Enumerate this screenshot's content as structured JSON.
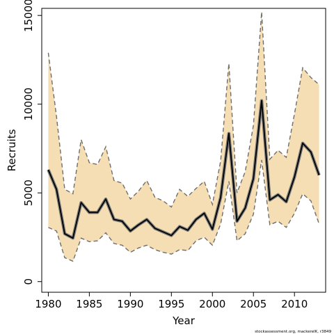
{
  "chart_data": {
    "type": "line",
    "title": "",
    "xlabel": "Year",
    "ylabel": "Recruits",
    "xlim": [
      1979.2,
      2013.8
    ],
    "ylim": [
      -600,
      15400
    ],
    "x_ticks": [
      1980,
      1985,
      1990,
      1995,
      2000,
      2005,
      2010
    ],
    "y_ticks": [
      0,
      5000,
      10000,
      15000
    ],
    "grid": false,
    "legend": "none",
    "x": [
      1980,
      1981,
      1982,
      1983,
      1984,
      1985,
      1986,
      1987,
      1988,
      1989,
      1990,
      1991,
      1992,
      1993,
      1994,
      1995,
      1996,
      1997,
      1998,
      1999,
      2000,
      2001,
      2002,
      2003,
      2004,
      2005,
      2006,
      2007,
      2008,
      2009,
      2010,
      2011,
      2012,
      2013
    ],
    "estimate": [
      6300,
      5200,
      2700,
      2450,
      4450,
      3900,
      3900,
      4650,
      3500,
      3400,
      2850,
      3200,
      3500,
      3000,
      2800,
      2600,
      3100,
      2900,
      3500,
      3850,
      2950,
      4750,
      8350,
      3400,
      4150,
      5800,
      10200,
      4600,
      4900,
      4500,
      5900,
      7800,
      7300,
      6000
    ],
    "lower": [
      3050,
      2850,
      1350,
      1150,
      2450,
      2250,
      2300,
      2750,
      2150,
      2050,
      1650,
      1900,
      2050,
      1800,
      1650,
      1550,
      1800,
      1750,
      2300,
      2500,
      2050,
      3250,
      5650,
      2300,
      2700,
      3800,
      6850,
      3200,
      3400,
      3050,
      3850,
      4950,
      4550,
      3250
    ],
    "upper": [
      12900,
      9300,
      5200,
      4950,
      8000,
      6700,
      6600,
      7600,
      5700,
      5550,
      4650,
      5100,
      5700,
      4750,
      4550,
      4200,
      5200,
      4800,
      5250,
      5650,
      4350,
      6800,
      12300,
      5000,
      6200,
      8800,
      15200,
      6900,
      7400,
      7000,
      9450,
      12050,
      11500,
      11100
    ],
    "colors": {
      "band_fill": "#f5deb3",
      "estimate_line": "#000000",
      "estimate_halo": "#7a7a7a",
      "bound_dash": "#6e6e6e"
    }
  },
  "footer": {
    "credit": "stockassessment.org, mackerelK, r3849"
  }
}
